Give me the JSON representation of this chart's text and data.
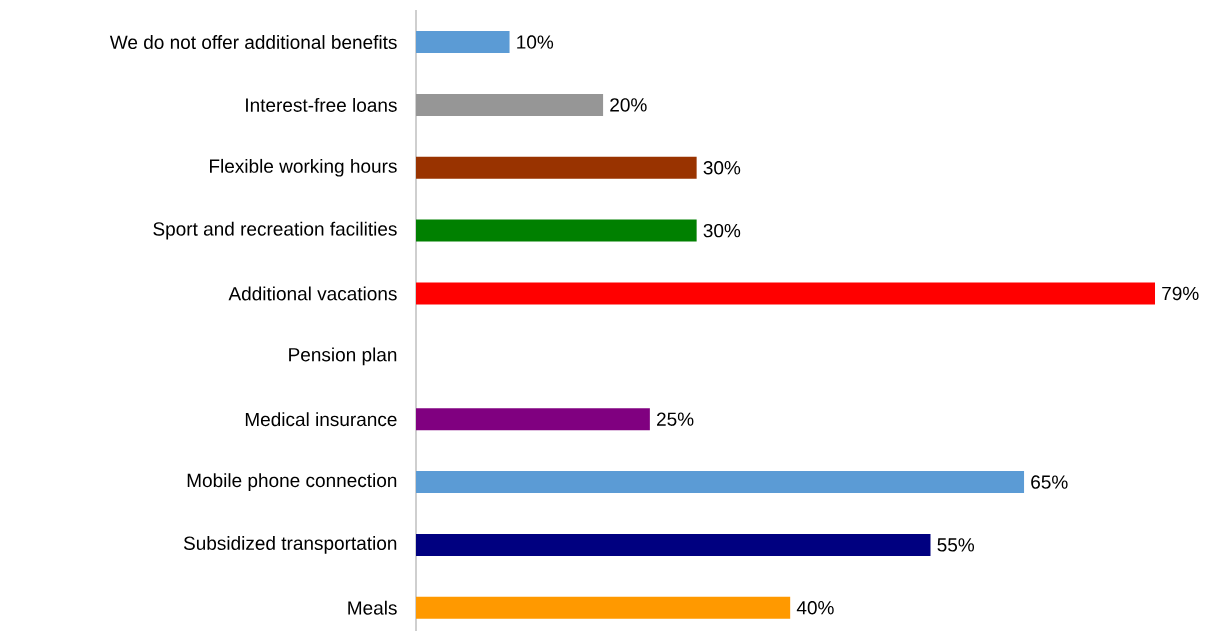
{
  "chart_data": {
    "type": "bar",
    "orientation": "horizontal",
    "categories": [
      "We do not offer additional benefits",
      "Interest-free loans",
      "Flexible working hours",
      "Sport and recreation facilities",
      "Additional vacations",
      "Pension plan",
      "Medical insurance",
      "Mobile phone connection",
      "Subsidized transportation",
      "Meals"
    ],
    "values": [
      10,
      20,
      30,
      30,
      79,
      null,
      25,
      65,
      55,
      40
    ],
    "value_labels": [
      "10%",
      "20%",
      "30%",
      "30%",
      "79%",
      null,
      "25%",
      "65%",
      "55%",
      "40%"
    ],
    "colors": [
      "#5b9bd5",
      "#969696",
      "#993300",
      "#008000",
      "#ff0000",
      null,
      "#800080",
      "#5b9bd5",
      "#000080",
      "#ff9900"
    ]
  }
}
